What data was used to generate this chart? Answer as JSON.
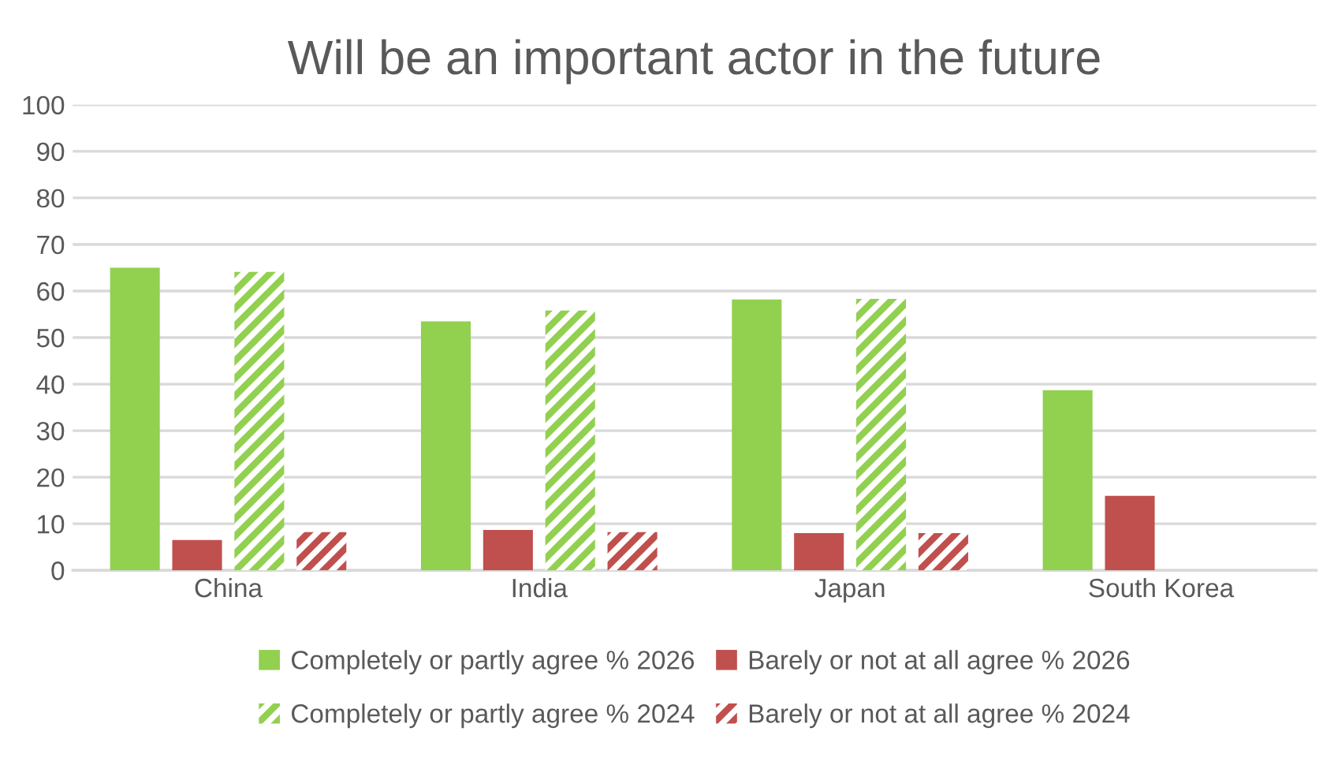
{
  "chart_data": {
    "type": "bar",
    "title": "Will be an important actor in the future",
    "categories": [
      "China",
      "India",
      "Japan",
      "South Korea"
    ],
    "series": [
      {
        "name": "Completely or partly agree % 2026",
        "color": "#92d050",
        "values": [
          65.0,
          53.5,
          58.2,
          38.7
        ]
      },
      {
        "name": "Barely or not at all agree % 2026",
        "color": "#c0504d",
        "values": [
          6.5,
          8.7,
          8.0,
          16.0
        ]
      },
      {
        "name": "Completely or partly agree % 2024",
        "color": "#92d050",
        "values": [
          64.1,
          55.8,
          58.3,
          null
        ]
      },
      {
        "name": "Barely or not at all agree % 2024",
        "color": "#c0504d",
        "values": [
          8.2,
          8.2,
          8.0,
          null
        ]
      }
    ],
    "ylim": [
      0,
      100
    ],
    "yticks": [
      0,
      10,
      20,
      30,
      40,
      50,
      60,
      70,
      80,
      90,
      100
    ],
    "grid": "y",
    "legend": "bottom"
  }
}
